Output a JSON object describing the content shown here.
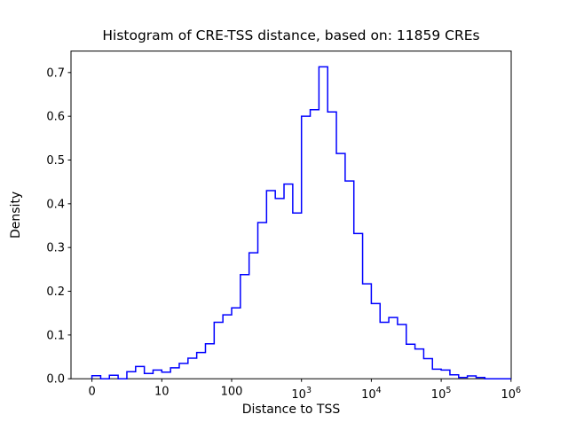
{
  "figure": {
    "title": "Histogram of CRE-TSS distance, based on: 11859 CREs",
    "background": "#ffffff"
  },
  "chart_data": {
    "type": "bar",
    "subtype": "step-histogram",
    "title": "Histogram of CRE-TSS distance, based on: 11859 CREs",
    "xlabel": "Distance to TSS",
    "ylabel": "Density",
    "n_cres": 11859,
    "line_color": "#0000ff",
    "x_scale": "symlog",
    "linthresh": 10,
    "xlim": [
      -3,
      1000000
    ],
    "ylim": [
      0,
      0.749
    ],
    "grid": false,
    "legend": "none",
    "bin_edges": [
      0,
      1.25,
      2.5,
      3.75,
      5,
      6.25,
      7.5,
      8.75,
      10,
      13.34,
      17.78,
      23.71,
      31.62,
      42.17,
      56.23,
      74.99,
      100,
      133.35,
      177.83,
      237.14,
      316.23,
      421.7,
      562.34,
      749.89,
      1000,
      1333.52,
      1778.28,
      2371.37,
      3162.28,
      4216.97,
      5623.41,
      7498.94,
      10000,
      13335.2,
      17782.8,
      23713.7,
      31622.8,
      42169.7,
      56234.1,
      74989.4,
      100000,
      133352,
      177828,
      237137,
      316228,
      421697,
      562341,
      749894,
      1000000
    ],
    "densities": [
      0.007,
      0,
      0.008,
      0,
      0.016,
      0.028,
      0.012,
      0.02,
      0.015,
      0.025,
      0.035,
      0.047,
      0.06,
      0.08,
      0.129,
      0.146,
      0.162,
      0.238,
      0.288,
      0.357,
      0.43,
      0.412,
      0.445,
      0.379,
      0.6,
      0.615,
      0.713,
      0.61,
      0.515,
      0.452,
      0.332,
      0.217,
      0.172,
      0.129,
      0.14,
      0.124,
      0.079,
      0.068,
      0.046,
      0.022,
      0.02,
      0.009,
      0.003,
      0.0065,
      0.003,
      0,
      0,
      0
    ],
    "xticks": [
      {
        "base": "0",
        "exp": "",
        "value": 0
      },
      {
        "base": "10",
        "exp": "",
        "value": 10
      },
      {
        "base": "100",
        "exp": "",
        "value": 100
      },
      {
        "base": "10",
        "exp": "3",
        "value": 1000
      },
      {
        "base": "10",
        "exp": "4",
        "value": 10000
      },
      {
        "base": "10",
        "exp": "5",
        "value": 100000
      },
      {
        "base": "10",
        "exp": "6",
        "value": 1000000
      }
    ],
    "yticks": [
      "0.0",
      "0.1",
      "0.2",
      "0.3",
      "0.4",
      "0.5",
      "0.6",
      "0.7"
    ]
  }
}
